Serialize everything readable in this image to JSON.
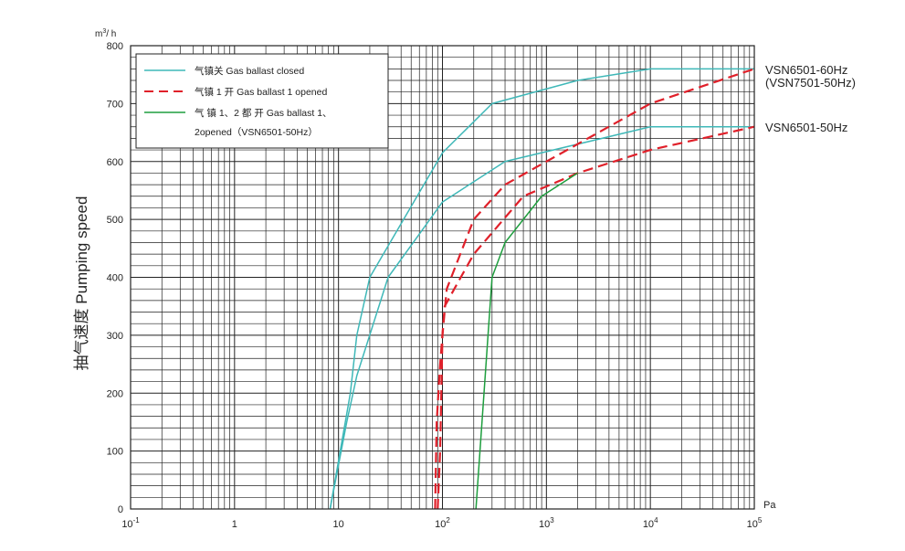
{
  "chart_data": {
    "type": "line",
    "x_scale": "log",
    "xlim": [
      0.1,
      100000
    ],
    "ylim": [
      0,
      800
    ],
    "y_ticks": [
      0,
      100,
      200,
      300,
      400,
      500,
      600,
      700,
      800
    ],
    "x_tick_labels": [
      {
        "value": 0.1,
        "base": "10",
        "exp": "-1"
      },
      {
        "value": 1,
        "base": "1",
        "exp": ""
      },
      {
        "value": 10,
        "base": "10",
        "exp": ""
      },
      {
        "value": 100,
        "base": "10",
        "exp": "2"
      },
      {
        "value": 1000,
        "base": "10",
        "exp": "3"
      },
      {
        "value": 10000,
        "base": "10",
        "exp": "4"
      },
      {
        "value": 100000,
        "base": "10",
        "exp": "5"
      }
    ],
    "xlabel": "Pa",
    "y_unit": {
      "base": "m",
      "sup": "3",
      "rest": "/ h"
    },
    "ylabel": "抽气速度 Pumping speed",
    "grid": true,
    "legend": {
      "position": "top-left",
      "entries": [
        {
          "text": "气镇关 Gas ballast closed",
          "color": "#3fb8b8",
          "style": "solid"
        },
        {
          "text": "气镇 1 开 Gas ballast 1 opened",
          "color": "#e0202a",
          "style": "dashed"
        },
        {
          "text": "气 镇 1、2 都 开 Gas ballast 1、",
          "text2": "2opened（VSN6501-50Hz）",
          "color": "#1e9e3e",
          "style": "solid"
        }
      ]
    },
    "curve_labels": [
      {
        "line1": "VSN6501-60Hz",
        "line2": "(VSN7501-50Hz)"
      },
      {
        "line1": "VSN6501-50Hz",
        "line2": ""
      }
    ],
    "series": [
      {
        "color": "#3fb8b8",
        "style": "solid",
        "points": [
          [
            8.3,
            0
          ],
          [
            13,
            200
          ],
          [
            15,
            300
          ],
          [
            20,
            400
          ],
          [
            100,
            615
          ],
          [
            300,
            700
          ],
          [
            2000,
            740
          ],
          [
            10000,
            760
          ],
          [
            100000,
            760
          ]
        ]
      },
      {
        "color": "#3fb8b8",
        "style": "solid",
        "points": [
          [
            8.3,
            0
          ],
          [
            12,
            150
          ],
          [
            15,
            230
          ],
          [
            30,
            400
          ],
          [
            100,
            530
          ],
          [
            400,
            600
          ],
          [
            10000,
            660
          ],
          [
            100000,
            660
          ]
        ]
      },
      {
        "color": "#e0202a",
        "style": "dashed",
        "points": [
          [
            90,
            0
          ],
          [
            95,
            100
          ],
          [
            100,
            300
          ],
          [
            110,
            380
          ],
          [
            200,
            500
          ],
          [
            400,
            560
          ],
          [
            1000,
            600
          ],
          [
            10000,
            700
          ],
          [
            100000,
            760
          ]
        ]
      },
      {
        "color": "#e0202a",
        "style": "dashed",
        "points": [
          [
            85,
            0
          ],
          [
            88,
            150
          ],
          [
            95,
            250
          ],
          [
            105,
            350
          ],
          [
            150,
            400
          ],
          [
            200,
            440
          ],
          [
            600,
            540
          ],
          [
            2000,
            580
          ],
          [
            10000,
            620
          ],
          [
            100000,
            660
          ]
        ]
      },
      {
        "color": "#1e9e3e",
        "style": "solid",
        "points": [
          [
            210,
            0
          ],
          [
            300,
            400
          ],
          [
            400,
            460
          ],
          [
            900,
            540
          ],
          [
            2000,
            580
          ]
        ]
      }
    ]
  }
}
